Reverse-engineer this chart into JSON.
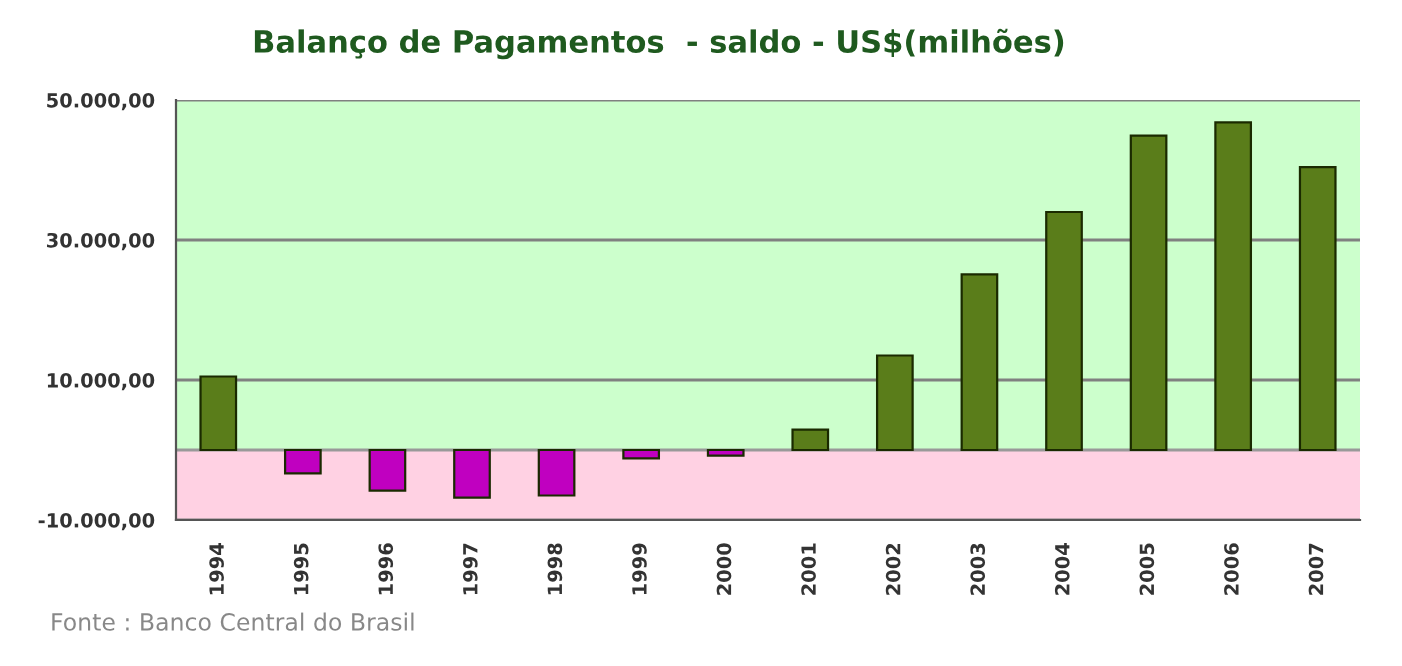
{
  "chart_data": {
    "type": "bar",
    "title": "Balanço de Pagamentos  - saldo - US$(milhões)",
    "categories": [
      "1994",
      "1995",
      "1996",
      "1997",
      "1998",
      "1999",
      "2000",
      "2001",
      "2002",
      "2003",
      "2004",
      "2005",
      "2006",
      "2007"
    ],
    "values": [
      10500,
      -3350,
      -5800,
      -6800,
      -6500,
      -1200,
      -800,
      2900,
      13500,
      25100,
      34000,
      44900,
      46800,
      40400
    ],
    "colors": [
      "#5a7d1a",
      "#c000c0",
      "#c000c0",
      "#c000c0",
      "#c000c0",
      "#c000c0",
      "#c000c0",
      "#5a7d1a",
      "#5a7d1a",
      "#5a7d1a",
      "#5a7d1a",
      "#5a7d1a",
      "#5a7d1a",
      "#5a7d1a"
    ],
    "ylim": [
      -10000,
      50000
    ],
    "yticks": [
      {
        "value": 50000,
        "label": "50.000,00"
      },
      {
        "value": 30000,
        "label": "30.000,00"
      },
      {
        "value": 10000,
        "label": "10.000,00"
      },
      {
        "value": -10000,
        "label": "-10.000,00"
      }
    ],
    "bands": [
      {
        "axis": "y",
        "from": 0,
        "to": 50000,
        "color": "#ccffcc"
      },
      {
        "axis": "y",
        "from": -10000,
        "to": 0,
        "color": "#ffd1e3"
      }
    ],
    "ref_lines": [
      {
        "axis": "y",
        "value": 0,
        "color": "#999999"
      }
    ],
    "grid": "y",
    "annotations": [
      "Fonte : Banco Central do Brasil"
    ]
  }
}
